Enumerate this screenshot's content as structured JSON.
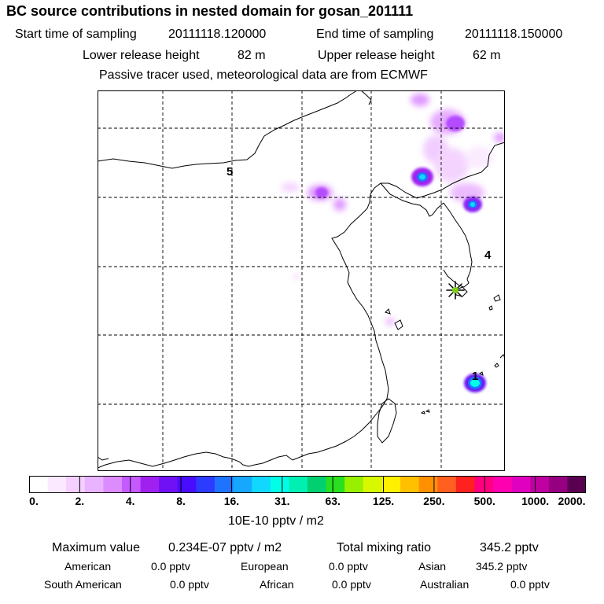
{
  "header": {
    "title": "BC  source contributions in nested domain for gosan_201111",
    "start_label": "Start time of sampling",
    "start_value": "20111118.120000",
    "end_label": "End time of sampling",
    "end_value": "20111118.150000",
    "lower_label": "Lower release height",
    "lower_value": "82 m",
    "upper_label": "Upper release height",
    "upper_value": "62 m",
    "note": "Passive tracer used, meteorological data are from ECMWF"
  },
  "map": {
    "markers": [
      "5",
      "4",
      "1"
    ],
    "receptor_icon": "star-receptor-icon"
  },
  "colorbar": {
    "colors": [
      "#ffffff",
      "#fbe9ff",
      "#f3d0ff",
      "#eab3ff",
      "#dc8cff",
      "#c45aff",
      "#a020f0",
      "#7010f5",
      "#4a0cff",
      "#2c3cff",
      "#1e74ff",
      "#16a7ff",
      "#10d8ff",
      "#00ffe6",
      "#00f0b4",
      "#00d070",
      "#28e020",
      "#98f000",
      "#d8f800",
      "#fff000",
      "#ffc000",
      "#ff9000",
      "#ff6020",
      "#ff2020",
      "#ff0080",
      "#ff00b0",
      "#e000c0",
      "#c000a0",
      "#960080",
      "#5a0050"
    ],
    "ticks": [
      "0.",
      "2.",
      "4.",
      "8.",
      "16.",
      "31.",
      "63.",
      "125.",
      "250.",
      "500.",
      "1000.",
      "2000."
    ],
    "units": "10E-10 pptv / m2"
  },
  "stats": {
    "max_label": "Maximum value",
    "max_value": "0.234E-07 pptv / m2",
    "total_label": "Total mixing ratio",
    "total_value": "345.2 pptv",
    "american_label": "American",
    "american_value": "0.0 pptv",
    "european_label": "European",
    "european_value": "0.0 pptv",
    "asian_label": "Asian",
    "asian_value": "345.2 pptv",
    "south_american_label": "South American",
    "south_american_value": "0.0 pptv",
    "african_label": "African",
    "african_value": "0.0 pptv",
    "australian_label": "Australian",
    "australian_value": "0.0 pptv"
  }
}
